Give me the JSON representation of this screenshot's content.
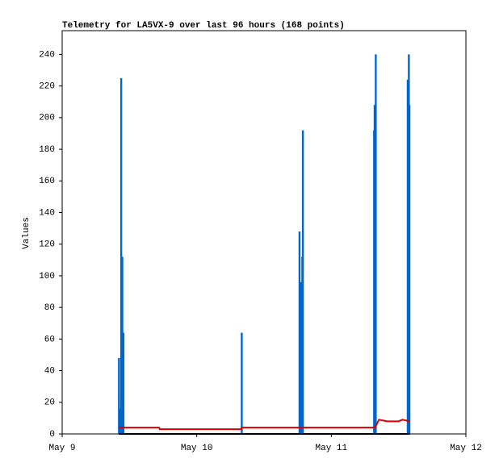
{
  "chart_data": {
    "type": "line",
    "title": "Telemetry for LA5VX-9 over last 96 hours (168 points)",
    "y_label": "Values",
    "xlim": [
      0,
      72
    ],
    "xticks": [
      {
        "value": 0,
        "label": "May 9"
      },
      {
        "value": 24,
        "label": "May 10"
      },
      {
        "value": 48,
        "label": "May 11"
      },
      {
        "value": 72,
        "label": "May 12"
      }
    ],
    "ylim": [
      0,
      255
    ],
    "yticks": [
      0,
      20,
      40,
      60,
      80,
      100,
      120,
      140,
      160,
      180,
      200,
      220,
      240
    ],
    "grid": false,
    "series": [
      {
        "type": "bar",
        "color": "#0066cc",
        "x": [
          10.1,
          10.2,
          10.5,
          10.7,
          10.9,
          32.0,
          42.3,
          42.6,
          42.8,
          42.9,
          55.6,
          55.7,
          55.9,
          61.6,
          61.8,
          61.9
        ],
        "values": [
          48,
          16,
          225,
          112,
          64,
          64,
          128,
          96,
          112,
          192,
          192,
          208,
          240,
          224,
          240,
          208
        ]
      },
      {
        "type": "line",
        "color": "#dd0000",
        "x": [
          10.1,
          17.3,
          17.4,
          31.9,
          32.0,
          55.8,
          56.5,
          58.0,
          60.0,
          60.7,
          62.0
        ],
        "values": [
          4,
          4,
          3,
          3,
          4,
          4,
          9,
          8,
          8,
          9,
          8
        ]
      },
      {
        "type": "line",
        "color": "#000000",
        "x": [
          10.1,
          62.0
        ],
        "values": [
          0,
          0
        ]
      }
    ]
  }
}
